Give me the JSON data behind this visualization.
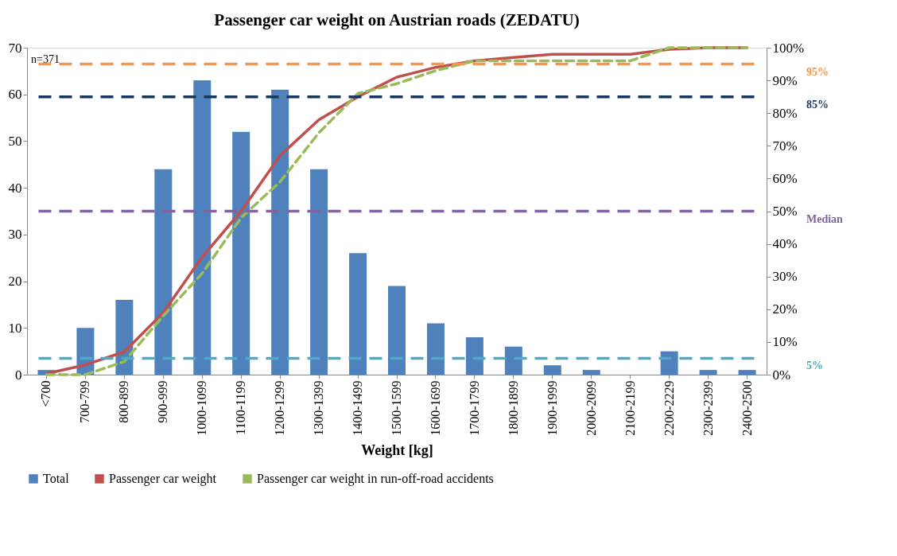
{
  "chart_data": {
    "type": "bar",
    "title": "Passenger car weight on Austrian roads (ZEDATU)",
    "xlabel": "Weight [kg]",
    "categories": [
      "<700",
      "700-799",
      "800-899",
      "900-999",
      "1000-1099",
      "1100-1199",
      "1200-1299",
      "1300-1399",
      "1400-1499",
      "1500-1599",
      "1600-1699",
      "1700-1799",
      "1800-1899",
      "1900-1999",
      "2000-2099",
      "2100-2199",
      "2200-2229",
      "2300-2399",
      "2400-2500"
    ],
    "series": [
      {
        "name": "Total",
        "color": "#4f81bd",
        "values": [
          1,
          10,
          16,
          44,
          63,
          52,
          61,
          44,
          26,
          19,
          11,
          8,
          6,
          2,
          1,
          0,
          5,
          1,
          1
        ]
      },
      {
        "name": "Passenger car weight",
        "type": "line",
        "axis": "y2",
        "color": "#c0504d",
        "line_style": "solid",
        "values": [
          0.3,
          3,
          7,
          19,
          36,
          50,
          67,
          78,
          85,
          91,
          94,
          96,
          97,
          98,
          98,
          98,
          99.5,
          100,
          100
        ]
      },
      {
        "name": "Passenger car weight in run-off-road accidents",
        "type": "line",
        "axis": "y2",
        "color": "#9bbb59",
        "line_style": "dashed",
        "values": [
          0,
          0,
          4,
          18,
          31,
          48,
          59,
          74,
          86,
          89,
          93,
          96,
          96,
          96,
          96,
          96,
          100,
          100,
          100
        ]
      }
    ],
    "ylim": [
      0,
      70
    ],
    "yticks": [
      0,
      10,
      20,
      30,
      40,
      50,
      60,
      70
    ],
    "y2lim": [
      0,
      100
    ],
    "y2ticks": [
      {
        "value": 0,
        "label": "0%"
      },
      {
        "value": 10,
        "label": "10%"
      },
      {
        "value": 20,
        "label": "20%"
      },
      {
        "value": 30,
        "label": "30%"
      },
      {
        "value": 40,
        "label": "40%"
      },
      {
        "value": 50,
        "label": "50%"
      },
      {
        "value": 60,
        "label": "60%"
      },
      {
        "value": 70,
        "label": "70%"
      },
      {
        "value": 80,
        "label": "80%"
      },
      {
        "value": 90,
        "label": "90%"
      },
      {
        "value": 100,
        "label": "100%"
      }
    ],
    "ref_lines": [
      {
        "axis": "y2",
        "value": 95,
        "label": "95%",
        "color": "#f79646",
        "line_style": "dashed"
      },
      {
        "axis": "y2",
        "value": 85,
        "label": "85%",
        "color": "#17375e",
        "line_style": "dashed"
      },
      {
        "axis": "y2",
        "value": 50,
        "label": "Median",
        "color": "#8064a2",
        "line_style": "dashed"
      },
      {
        "axis": "y2",
        "value": 5,
        "label": "5%",
        "color": "#4bacc6",
        "line_style": "dashed"
      }
    ],
    "annotations": [
      "n=371"
    ],
    "grid": false,
    "legend": "bottom"
  }
}
